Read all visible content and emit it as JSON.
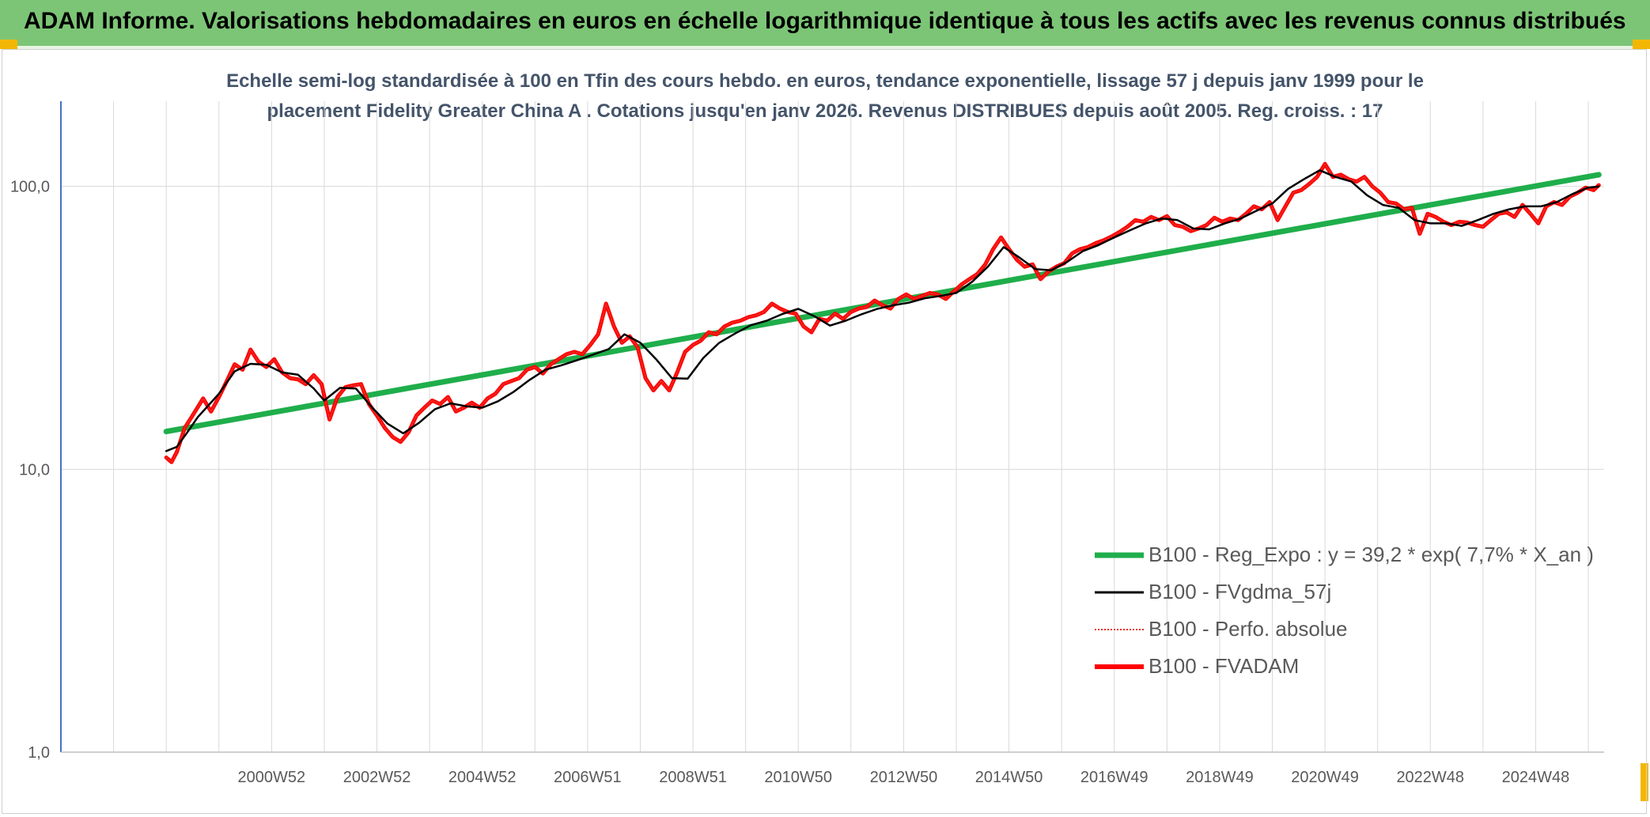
{
  "header": {
    "title": "ADAM Informe. Valorisations hebdomadaires en euros en échelle logarithmique identique à tous les actifs avec les revenus connus distribués"
  },
  "chart_data": {
    "type": "line",
    "title_line1": "Echelle semi-log standardisée à 100 en Tfin des cours hebdo. en euros, tendance exponentielle, lissage 57 j depuis janv 1999 pour le",
    "title_line2": "placement Fidelity Greater China A . Cotations jusqu'en janv 2026. Revenus DISTRIBUES depuis août 2005. Reg. croiss. : 17",
    "y_scale": "log",
    "ylim": [
      1,
      200
    ],
    "y_ticks": [
      {
        "value": 1,
        "label": "1,0"
      },
      {
        "value": 10,
        "label": "10,0"
      },
      {
        "value": 100,
        "label": "100,0"
      }
    ],
    "xlim": [
      1997,
      2026.3
    ],
    "x_ticks": [
      {
        "x": 2001,
        "label": "2000W52"
      },
      {
        "x": 2003,
        "label": "2002W52"
      },
      {
        "x": 2005,
        "label": "2004W52"
      },
      {
        "x": 2007,
        "label": "2006W51"
      },
      {
        "x": 2009,
        "label": "2008W51"
      },
      {
        "x": 2011,
        "label": "2010W50"
      },
      {
        "x": 2013,
        "label": "2012W50"
      },
      {
        "x": 2015,
        "label": "2014W50"
      },
      {
        "x": 2017,
        "label": "2016W49"
      },
      {
        "x": 2019,
        "label": "2018W49"
      },
      {
        "x": 2021,
        "label": "2020W49"
      },
      {
        "x": 2023,
        "label": "2022W48"
      },
      {
        "x": 2025,
        "label": "2024W48"
      }
    ],
    "grid_x": [
      1998,
      1999,
      2000,
      2001,
      2002,
      2003,
      2004,
      2005,
      2006,
      2007,
      2008,
      2009,
      2010,
      2011,
      2012,
      2013,
      2014,
      2015,
      2016,
      2017,
      2018,
      2019,
      2020,
      2021,
      2022,
      2023,
      2024,
      2025,
      2026
    ],
    "legend_position": "bottom-right",
    "series": [
      {
        "name": "B100 - Reg_Expo : y = 39,2 * exp( 7,7% *  X_an )",
        "color": "#1fae4b",
        "style": "solid-thick",
        "x": [
          1999.0,
          2026.2
        ],
        "y": [
          13.6,
          110.0
        ]
      },
      {
        "name": "B100 - FVgdma_57j",
        "color": "#000000",
        "style": "solid",
        "x": [
          1999.0,
          1999.2,
          1999.4,
          1999.6,
          1999.8,
          2000.0,
          2000.3,
          2000.6,
          2000.9,
          2001.2,
          2001.5,
          2001.8,
          2002.0,
          2002.3,
          2002.6,
          2002.9,
          2003.2,
          2003.5,
          2003.8,
          2004.1,
          2004.4,
          2004.7,
          2005.0,
          2005.3,
          2005.6,
          2005.9,
          2006.2,
          2006.5,
          2006.8,
          2007.1,
          2007.4,
          2007.7,
          2008.0,
          2008.3,
          2008.6,
          2008.9,
          2009.2,
          2009.5,
          2009.8,
          2010.1,
          2010.4,
          2010.7,
          2011.0,
          2011.3,
          2011.6,
          2011.9,
          2012.2,
          2012.5,
          2012.8,
          2013.1,
          2013.4,
          2013.7,
          2014.0,
          2014.3,
          2014.6,
          2014.9,
          2015.2,
          2015.5,
          2015.8,
          2016.1,
          2016.4,
          2016.7,
          2017.0,
          2017.3,
          2017.6,
          2017.9,
          2018.2,
          2018.5,
          2018.8,
          2019.1,
          2019.4,
          2019.7,
          2020.0,
          2020.3,
          2020.6,
          2020.9,
          2021.2,
          2021.5,
          2021.8,
          2022.1,
          2022.4,
          2022.7,
          2023.0,
          2023.3,
          2023.6,
          2023.9,
          2024.2,
          2024.5,
          2024.8,
          2025.1,
          2025.4,
          2025.7,
          2026.0,
          2026.2
        ],
        "y": [
          11.6,
          12.0,
          13.5,
          15.3,
          16.8,
          18.5,
          22.2,
          23.6,
          23.4,
          22.0,
          21.6,
          19.3,
          17.5,
          19.4,
          19.3,
          16.6,
          14.5,
          13.4,
          14.6,
          16.3,
          17.1,
          16.7,
          16.5,
          17.4,
          18.8,
          20.7,
          22.5,
          23.3,
          24.3,
          25.4,
          26.6,
          30.0,
          28.0,
          24.5,
          21.0,
          20.9,
          24.8,
          28.0,
          30.2,
          32.3,
          33.5,
          35.4,
          36.9,
          34.8,
          32.2,
          33.5,
          35.3,
          36.9,
          38.0,
          38.8,
          40.2,
          41.0,
          42.0,
          46.0,
          52.0,
          61.0,
          56.0,
          51.0,
          50.5,
          54.0,
          59.0,
          62.0,
          66.0,
          70.0,
          74.0,
          77.0,
          76.0,
          71.0,
          70.5,
          74.0,
          77.0,
          82.0,
          87.0,
          98.0,
          106.0,
          114.0,
          108.0,
          104.0,
          93.0,
          86.0,
          84.0,
          76.0,
          74.0,
          74.0,
          72.5,
          76.0,
          80.0,
          83.0,
          85.0,
          85.0,
          88.0,
          94.0,
          99.0,
          100.0
        ]
      },
      {
        "name": "B100 - Perfo. absolue",
        "color": "#e8312a",
        "style": "dotted",
        "x": [
          1999.0,
          1999.1,
          1999.2,
          1999.35,
          1999.5,
          1999.7,
          1999.85,
          2000.0,
          2000.15,
          2000.3,
          2000.45,
          2000.6,
          2000.75,
          2000.9,
          2001.05,
          2001.2,
          2001.35,
          2001.5,
          2001.65,
          2001.8,
          2001.95,
          2002.1,
          2002.25,
          2002.4,
          2002.55,
          2002.7,
          2002.85,
          2003.0,
          2003.15,
          2003.3,
          2003.45,
          2003.6,
          2003.75,
          2003.9,
          2004.05,
          2004.2,
          2004.35,
          2004.5,
          2004.65,
          2004.8,
          2004.95,
          2005.1,
          2005.25,
          2005.4,
          2005.55,
          2005.7,
          2005.85,
          2006.0,
          2006.15,
          2006.3,
          2006.45,
          2006.6,
          2006.75,
          2006.9,
          2007.05,
          2007.2,
          2007.35,
          2007.5,
          2007.65,
          2007.8,
          2007.95,
          2008.1,
          2008.25,
          2008.4,
          2008.55,
          2008.7,
          2008.85,
          2009.0,
          2009.15,
          2009.3,
          2009.45,
          2009.6,
          2009.75,
          2009.9,
          2010.05,
          2010.2,
          2010.35,
          2010.5,
          2010.65,
          2010.8,
          2010.95,
          2011.1,
          2011.25,
          2011.4,
          2011.55,
          2011.7,
          2011.85,
          2012.0,
          2012.15,
          2012.3,
          2012.45,
          2012.6,
          2012.75,
          2012.9,
          2013.05,
          2013.2,
          2013.35,
          2013.5,
          2013.65,
          2013.8,
          2013.95,
          2014.1,
          2014.25,
          2014.4,
          2014.55,
          2014.7,
          2014.85,
          2015.0,
          2015.15,
          2015.3,
          2015.45,
          2015.6,
          2015.75,
          2015.9,
          2016.05,
          2016.2,
          2016.35,
          2016.5,
          2016.65,
          2016.8,
          2016.95,
          2017.1,
          2017.25,
          2017.4,
          2017.55,
          2017.7,
          2017.85,
          2018.0,
          2018.15,
          2018.3,
          2018.45,
          2018.6,
          2018.75,
          2018.9,
          2019.05,
          2019.2,
          2019.35,
          2019.5,
          2019.65,
          2019.8,
          2019.95,
          2020.1,
          2020.25,
          2020.4,
          2020.55,
          2020.7,
          2020.85,
          2021.0,
          2021.15,
          2021.3,
          2021.45,
          2021.6,
          2021.75,
          2021.9,
          2022.05,
          2022.2,
          2022.35,
          2022.5,
          2022.65,
          2022.8,
          2022.95,
          2023.1,
          2023.25,
          2023.4,
          2023.55,
          2023.7,
          2023.85,
          2024.0,
          2024.15,
          2024.3,
          2024.45,
          2024.6,
          2024.75,
          2024.9,
          2025.05,
          2025.2,
          2025.35,
          2025.5,
          2025.65,
          2025.8,
          2025.95,
          2026.1,
          2026.2
        ],
        "y": [
          11.0,
          10.6,
          11.5,
          14.0,
          15.5,
          17.8,
          16.0,
          18.0,
          20.5,
          23.5,
          22.5,
          26.5,
          24.0,
          23.0,
          24.5,
          22.0,
          21.0,
          20.8,
          20.0,
          21.5,
          20.0,
          15.0,
          18.0,
          19.5,
          19.8,
          20.0,
          17.0,
          15.5,
          14.0,
          13.0,
          12.5,
          13.5,
          15.5,
          16.5,
          17.5,
          17.0,
          18.0,
          16.0,
          16.5,
          17.2,
          16.5,
          17.8,
          18.5,
          20.0,
          20.5,
          21.0,
          22.5,
          23.0,
          21.8,
          23.5,
          24.5,
          25.5,
          26.0,
          25.5,
          27.5,
          30.0,
          38.5,
          32.0,
          28.0,
          29.5,
          27.0,
          21.0,
          19.0,
          20.5,
          19.0,
          22.0,
          26.0,
          27.5,
          28.5,
          30.5,
          30.0,
          32.0,
          33.0,
          33.5,
          34.5,
          35.0,
          36.0,
          38.5,
          37.0,
          36.0,
          35.5,
          32.0,
          30.5,
          34.0,
          33.5,
          35.5,
          34.0,
          36.0,
          37.0,
          37.5,
          39.5,
          38.0,
          37.0,
          40.0,
          41.5,
          40.0,
          41.0,
          42.0,
          41.5,
          40.0,
          42.5,
          45.0,
          47.0,
          49.0,
          53.0,
          60.0,
          66.0,
          60.0,
          55.0,
          52.0,
          53.0,
          47.0,
          50.0,
          52.0,
          53.5,
          58.0,
          60.0,
          61.0,
          63.0,
          64.5,
          66.5,
          69.0,
          72.0,
          76.0,
          75.0,
          78.0,
          76.0,
          78.5,
          73.0,
          72.0,
          69.5,
          71.0,
          73.0,
          77.5,
          75.0,
          77.0,
          76.0,
          80.0,
          85.0,
          83.0,
          88.0,
          76.0,
          85.0,
          95.0,
          97.0,
          102.0,
          108.0,
          120.0,
          108.0,
          110.0,
          106.0,
          104.0,
          108.0,
          100.0,
          95.0,
          88.0,
          87.0,
          83.0,
          84.0,
          68.0,
          80.0,
          78.0,
          75.0,
          73.0,
          75.0,
          74.5,
          73.0,
          72.0,
          76.0,
          80.0,
          81.0,
          78.0,
          86.0,
          80.0,
          74.0,
          85.0,
          88.0,
          86.0,
          92.0,
          95.0,
          99.0,
          97.0,
          101.0
        ]
      },
      {
        "name": "B100 - FVADAM",
        "color": "#ff0000",
        "style": "solid-thick",
        "x": [
          1999.0,
          1999.1,
          1999.2,
          1999.35,
          1999.5,
          1999.7,
          1999.85,
          2000.0,
          2000.15,
          2000.3,
          2000.45,
          2000.6,
          2000.75,
          2000.9,
          2001.05,
          2001.2,
          2001.35,
          2001.5,
          2001.65,
          2001.8,
          2001.95,
          2002.1,
          2002.25,
          2002.4,
          2002.55,
          2002.7,
          2002.85,
          2003.0,
          2003.15,
          2003.3,
          2003.45,
          2003.6,
          2003.75,
          2003.9,
          2004.05,
          2004.2,
          2004.35,
          2004.5,
          2004.65,
          2004.8,
          2004.95,
          2005.1,
          2005.25,
          2005.4,
          2005.55,
          2005.7,
          2005.85,
          2006.0,
          2006.15,
          2006.3,
          2006.45,
          2006.6,
          2006.75,
          2006.9,
          2007.05,
          2007.2,
          2007.35,
          2007.5,
          2007.65,
          2007.8,
          2007.95,
          2008.1,
          2008.25,
          2008.4,
          2008.55,
          2008.7,
          2008.85,
          2009.0,
          2009.15,
          2009.3,
          2009.45,
          2009.6,
          2009.75,
          2009.9,
          2010.05,
          2010.2,
          2010.35,
          2010.5,
          2010.65,
          2010.8,
          2010.95,
          2011.1,
          2011.25,
          2011.4,
          2011.55,
          2011.7,
          2011.85,
          2012.0,
          2012.15,
          2012.3,
          2012.45,
          2012.6,
          2012.75,
          2012.9,
          2013.05,
          2013.2,
          2013.35,
          2013.5,
          2013.65,
          2013.8,
          2013.95,
          2014.1,
          2014.25,
          2014.4,
          2014.55,
          2014.7,
          2014.85,
          2015.0,
          2015.15,
          2015.3,
          2015.45,
          2015.6,
          2015.75,
          2015.9,
          2016.05,
          2016.2,
          2016.35,
          2016.5,
          2016.65,
          2016.8,
          2016.95,
          2017.1,
          2017.25,
          2017.4,
          2017.55,
          2017.7,
          2017.85,
          2018.0,
          2018.15,
          2018.3,
          2018.45,
          2018.6,
          2018.75,
          2018.9,
          2019.05,
          2019.2,
          2019.35,
          2019.5,
          2019.65,
          2019.8,
          2019.95,
          2020.1,
          2020.25,
          2020.4,
          2020.55,
          2020.7,
          2020.85,
          2021.0,
          2021.15,
          2021.3,
          2021.45,
          2021.6,
          2021.75,
          2021.9,
          2022.05,
          2022.2,
          2022.35,
          2022.5,
          2022.65,
          2022.8,
          2022.95,
          2023.1,
          2023.25,
          2023.4,
          2023.55,
          2023.7,
          2023.85,
          2024.0,
          2024.15,
          2024.3,
          2024.45,
          2024.6,
          2024.75,
          2024.9,
          2025.05,
          2025.2,
          2025.35,
          2025.5,
          2025.65,
          2025.8,
          2025.95,
          2026.1,
          2026.2
        ],
        "y": [
          11.0,
          10.6,
          11.5,
          14.0,
          15.5,
          17.8,
          16.0,
          18.0,
          20.5,
          23.5,
          22.5,
          26.5,
          24.0,
          23.0,
          24.5,
          22.0,
          21.0,
          20.8,
          20.0,
          21.5,
          20.0,
          15.0,
          18.0,
          19.5,
          19.8,
          20.0,
          17.0,
          15.5,
          14.0,
          13.0,
          12.5,
          13.5,
          15.5,
          16.5,
          17.5,
          17.0,
          18.0,
          16.0,
          16.5,
          17.2,
          16.5,
          17.8,
          18.5,
          20.0,
          20.5,
          21.0,
          22.5,
          23.0,
          21.8,
          23.5,
          24.5,
          25.5,
          26.0,
          25.5,
          27.5,
          30.0,
          38.5,
          32.0,
          28.0,
          29.5,
          27.0,
          21.0,
          19.0,
          20.5,
          19.0,
          22.0,
          26.0,
          27.5,
          28.5,
          30.5,
          30.0,
          32.0,
          33.0,
          33.5,
          34.5,
          35.0,
          36.0,
          38.5,
          37.0,
          36.0,
          35.5,
          32.0,
          30.5,
          34.0,
          33.5,
          35.5,
          34.0,
          36.0,
          37.0,
          37.5,
          39.5,
          38.0,
          37.0,
          40.0,
          41.5,
          40.0,
          41.0,
          42.0,
          41.5,
          40.0,
          42.5,
          45.0,
          47.0,
          49.0,
          53.0,
          60.0,
          66.0,
          60.0,
          55.0,
          52.0,
          53.0,
          47.0,
          50.0,
          52.0,
          53.5,
          58.0,
          60.0,
          61.0,
          63.0,
          64.5,
          66.5,
          69.0,
          72.0,
          76.0,
          75.0,
          78.0,
          76.0,
          78.5,
          73.0,
          72.0,
          69.5,
          71.0,
          73.0,
          77.5,
          75.0,
          77.0,
          76.0,
          80.0,
          85.0,
          83.0,
          88.0,
          76.0,
          85.0,
          95.0,
          97.0,
          102.0,
          108.0,
          120.0,
          108.0,
          110.0,
          106.0,
          104.0,
          108.0,
          100.0,
          95.0,
          88.0,
          87.0,
          83.0,
          84.0,
          68.0,
          80.0,
          78.0,
          75.0,
          73.0,
          75.0,
          74.5,
          73.0,
          72.0,
          76.0,
          80.0,
          81.0,
          78.0,
          86.0,
          80.0,
          74.0,
          85.0,
          88.0,
          86.0,
          92.0,
          95.0,
          99.0,
          97.0,
          101.0
        ]
      }
    ]
  }
}
